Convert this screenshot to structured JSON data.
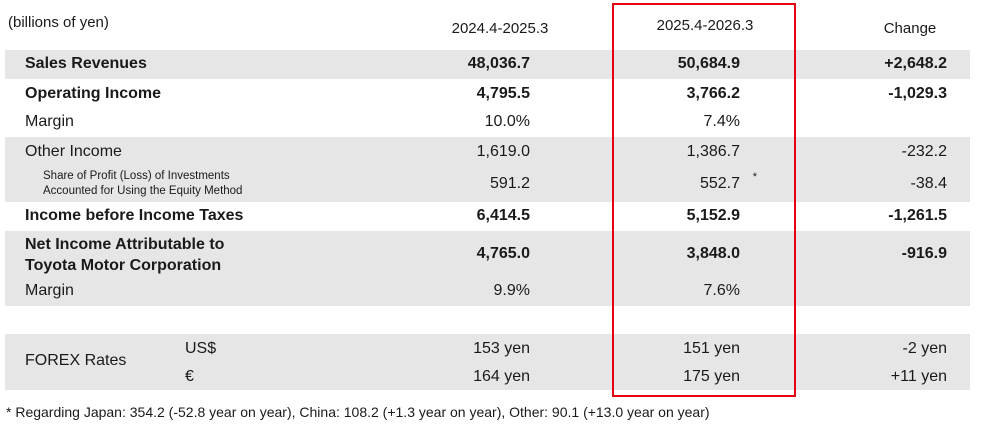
{
  "header": {
    "unit": "(billions of yen)",
    "col1": "2024.4-2025.3",
    "col2": "2025.4-2026.3",
    "col3": "Change"
  },
  "rows": {
    "sales": {
      "label": "Sales Revenues",
      "v1": "48,036.7",
      "v2": "50,684.9",
      "v3": "+2,648.2"
    },
    "operating": {
      "label": "Operating Income",
      "v1": "4,795.5",
      "v2": "3,766.2",
      "v3": "-1,029.3"
    },
    "margin1": {
      "label": "Margin",
      "v1": "10.0%",
      "v2": "7.4%",
      "v3": ""
    },
    "other": {
      "label": "Other Income",
      "v1": "1,619.0",
      "v2": "1,386.7",
      "v3": "-232.2"
    },
    "equity": {
      "label_line1": "Share of Profit (Loss) of Investments",
      "label_line2": "Accounted for Using the Equity Method",
      "v1": "591.2",
      "v2": "552.7",
      "star": "*",
      "v3": "-38.4"
    },
    "pretax": {
      "label": "Income before Income Taxes",
      "v1": "6,414.5",
      "v2": "5,152.9",
      "v3": "-1,261.5"
    },
    "netincome": {
      "label_line1": "Net Income Attributable to",
      "label_line2": "Toyota Motor Corporation",
      "v1": "4,765.0",
      "v2": "3,848.0",
      "v3": "-916.9"
    },
    "margin2": {
      "label": "Margin",
      "v1": "9.9%",
      "v2": "7.6%",
      "v3": ""
    },
    "forex": {
      "label": "FOREX Rates",
      "usd": {
        "currency": "US$",
        "v1": "153 yen",
        "v2": "151 yen",
        "v3": "-2 yen"
      },
      "eur": {
        "currency": "€",
        "v1": "164 yen",
        "v2": "175 yen",
        "v3": "+11 yen"
      }
    }
  },
  "footnote": "* Regarding Japan: 354.2 (-52.8 year on year), China: 108.2  (+1.3 year on year), Other: 90.1 (+13.0 year on year)",
  "colors": {
    "shade": "#e6e6e6",
    "highlight": "#e60012"
  }
}
